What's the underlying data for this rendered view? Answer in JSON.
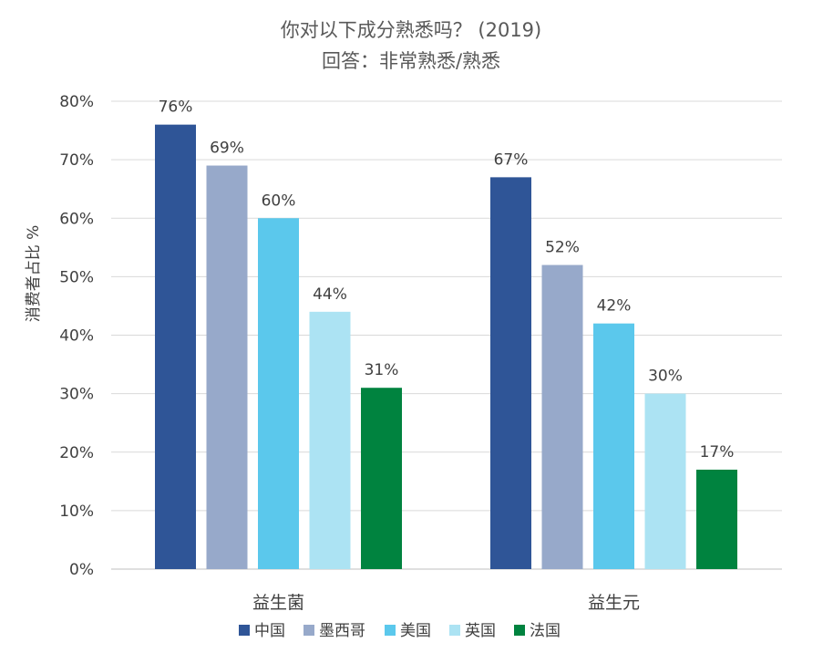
{
  "chart_data": {
    "type": "bar",
    "title": "你对以下成分熟悉吗？ (2019)",
    "subtitle": "回答：非常熟悉/熟悉",
    "ylabel": "消费者占比 %",
    "xlabel": "",
    "ylim": [
      0,
      80
    ],
    "y_ticks": [
      "0%",
      "10%",
      "20%",
      "30%",
      "40%",
      "50%",
      "60%",
      "70%",
      "80%"
    ],
    "y_tick_values": [
      0,
      10,
      20,
      30,
      40,
      50,
      60,
      70,
      80
    ],
    "grid": true,
    "legend_position": "bottom",
    "categories": [
      "益生菌",
      "益生元"
    ],
    "series": [
      {
        "name": "中国",
        "color": "#2F5597",
        "values": [
          76,
          67
        ],
        "labels": [
          "76%",
          "67%"
        ]
      },
      {
        "name": "墨西哥",
        "color": "#97A9CA",
        "values": [
          69,
          52
        ],
        "labels": [
          "69%",
          "52%"
        ]
      },
      {
        "name": "美国",
        "color": "#5BC8EC",
        "values": [
          60,
          42
        ],
        "labels": [
          "60%",
          "42%"
        ]
      },
      {
        "name": "英国",
        "color": "#ACE3F3",
        "values": [
          44,
          30
        ],
        "labels": [
          "44%",
          "30%"
        ]
      },
      {
        "name": "法国",
        "color": "#00833F",
        "values": [
          31,
          17
        ],
        "labels": [
          "31%",
          "17%"
        ]
      }
    ]
  }
}
